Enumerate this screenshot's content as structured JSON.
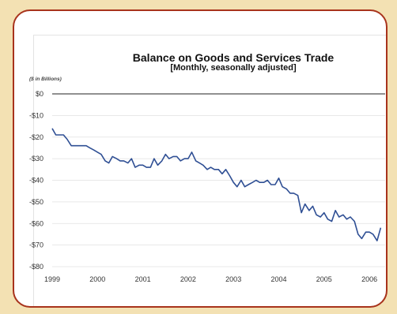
{
  "colors": {
    "background": "#f3e1b3",
    "frame_border": "#a8331c",
    "line": "#2f4f94",
    "gridline": "#e0e0e0",
    "zero_line": "#222222"
  },
  "chart_data": {
    "type": "line",
    "title": "Balance on Goods and Services Trade",
    "subtitle": "[Monthly, seasonally adjusted]",
    "units": "($ in Billions)",
    "ylim": [
      -80,
      0
    ],
    "y_ticks": [
      {
        "value": 0,
        "label": "$0"
      },
      {
        "value": -10,
        "label": "-$10"
      },
      {
        "value": -20,
        "label": "-$20"
      },
      {
        "value": -30,
        "label": "-$30"
      },
      {
        "value": -40,
        "label": "-$40"
      },
      {
        "value": -50,
        "label": "-$50"
      },
      {
        "value": -60,
        "label": "-$60"
      },
      {
        "value": -70,
        "label": "-$70"
      },
      {
        "value": -80,
        "label": "-$80"
      }
    ],
    "xlim": [
      1999,
      2006.33
    ],
    "x_ticks": [
      {
        "value": 1999,
        "label": "1999"
      },
      {
        "value": 2000,
        "label": "2000"
      },
      {
        "value": 2001,
        "label": "2001"
      },
      {
        "value": 2002,
        "label": "2002"
      },
      {
        "value": 2003,
        "label": "2003"
      },
      {
        "value": 2004,
        "label": "2004"
      },
      {
        "value": 2005,
        "label": "2005"
      },
      {
        "value": 2006,
        "label": "2006"
      }
    ],
    "grid": "horizontal",
    "legend": "none",
    "series": [
      {
        "x": [
          1999.0,
          1999.08,
          1999.17,
          1999.25,
          1999.33,
          1999.42,
          1999.5,
          1999.58,
          1999.67,
          1999.75,
          1999.83,
          1999.92,
          2000.0,
          2000.08,
          2000.17,
          2000.25,
          2000.33,
          2000.42,
          2000.5,
          2000.58,
          2000.67,
          2000.75,
          2000.83,
          2000.92,
          2001.0,
          2001.08,
          2001.17,
          2001.25,
          2001.33,
          2001.42,
          2001.5,
          2001.58,
          2001.67,
          2001.75,
          2001.83,
          2001.92,
          2002.0,
          2002.08,
          2002.17,
          2002.25,
          2002.33,
          2002.42,
          2002.5,
          2002.58,
          2002.67,
          2002.75,
          2002.83,
          2002.92,
          2003.0,
          2003.08,
          2003.17,
          2003.25,
          2003.33,
          2003.42,
          2003.5,
          2003.58,
          2003.67,
          2003.75,
          2003.83,
          2003.92,
          2004.0,
          2004.08,
          2004.17,
          2004.25,
          2004.33,
          2004.42,
          2004.5,
          2004.58,
          2004.67,
          2004.75,
          2004.83,
          2004.92,
          2005.0,
          2005.08,
          2005.17,
          2005.25,
          2005.33,
          2005.42,
          2005.5,
          2005.58,
          2005.67,
          2005.75,
          2005.83,
          2005.92,
          2006.0,
          2006.08,
          2006.17,
          2006.25
        ],
        "values": [
          -16,
          -19,
          -19,
          -19,
          -21,
          -24,
          -24,
          -24,
          -24,
          -24,
          -25,
          -26,
          -27,
          -28,
          -31,
          -32,
          -29,
          -30,
          -31,
          -31,
          -32,
          -30,
          -34,
          -33,
          -33,
          -34,
          -34,
          -30,
          -33,
          -31,
          -28,
          -30,
          -29,
          -29,
          -31,
          -30,
          -30,
          -27,
          -31,
          -32,
          -33,
          -35,
          -34,
          -35,
          -35,
          -37,
          -35,
          -38,
          -41,
          -43,
          -40,
          -43,
          -42,
          -41,
          -40,
          -41,
          -41,
          -40,
          -42,
          -42,
          -39,
          -43,
          -44,
          -46,
          -46,
          -47,
          -55,
          -51,
          -54,
          -52,
          -56,
          -57,
          -55,
          -58,
          -59,
          -54,
          -57,
          -56,
          -58,
          -57,
          -59,
          -65,
          -67,
          -64,
          -64,
          -65,
          -68,
          -62
        ]
      }
    ]
  }
}
